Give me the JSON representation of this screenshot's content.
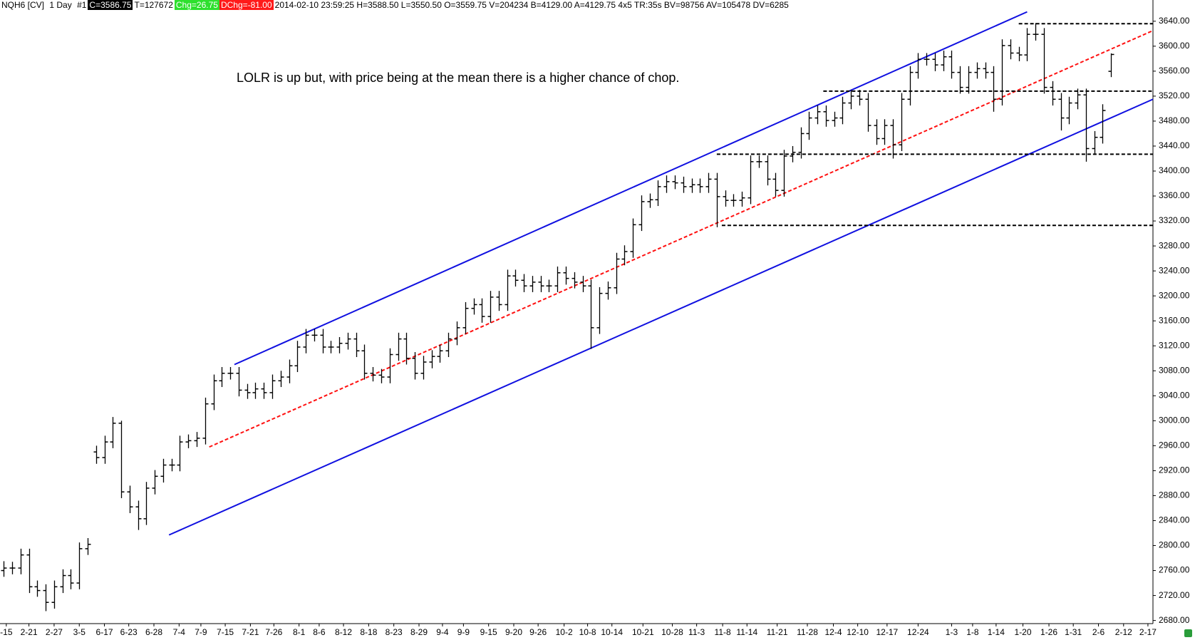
{
  "header": {
    "symbol": "NQH6 [CV]",
    "interval": "1 Day",
    "id": "#1",
    "close": "C=3586.75",
    "ticks": "T=127672",
    "change": "Chg=26.75",
    "dchange": "DChg=-81.00",
    "info": "2014-02-10 23:59:25 H=3588.50 L=3550.50 O=3559.75 V=204234 B=4129.00 A=4129.75 4x5 TR:35s BV=98756 AV=105478 DV=6285"
  },
  "chart_data": {
    "type": "ohlc",
    "color": "#000000",
    "annotation": "LOLR is up but, with price being at the mean there is a higher chance of chop.",
    "xlim": [
      -0.45,
      137
    ],
    "ylim": [
      2675,
      3674
    ],
    "ohlc": [
      [
        2760,
        2775,
        2750,
        2764
      ],
      [
        2764,
        2774,
        2754,
        2764
      ],
      [
        2764,
        2795,
        2754,
        2785
      ],
      [
        2785,
        2795,
        2724,
        2734
      ],
      [
        2734,
        2744,
        2718,
        2728
      ],
      [
        2728,
        2738,
        2695,
        2709
      ],
      [
        2709,
        2744,
        2699,
        2734
      ],
      [
        2734,
        2762,
        2724,
        2752
      ],
      [
        2752,
        2762,
        2730,
        2740
      ],
      [
        2740,
        2805,
        2730,
        2795
      ],
      [
        2795,
        2812,
        2785,
        2802
      ],
      [
        2950,
        2960,
        2931,
        2941
      ],
      [
        2941,
        2976,
        2931,
        2966
      ],
      [
        2966,
        3006,
        2956,
        2996
      ],
      [
        2996,
        3000,
        2876,
        2886
      ],
      [
        2886,
        2896,
        2852,
        2862
      ],
      [
        2862,
        2872,
        2825,
        2843
      ],
      [
        2843,
        2902,
        2833,
        2892
      ],
      [
        2892,
        2921,
        2882,
        2911
      ],
      [
        2911,
        2939,
        2901,
        2929
      ],
      [
        2929,
        2939,
        2919,
        2929
      ],
      [
        2929,
        2976,
        2919,
        2966
      ],
      [
        2966,
        2978,
        2956,
        2968
      ],
      [
        2968,
        2982,
        2958,
        2972
      ],
      [
        2972,
        3037,
        2962,
        3027
      ],
      [
        3027,
        3074,
        3017,
        3064
      ],
      [
        3064,
        3086,
        3054,
        3076
      ],
      [
        3076,
        3086,
        3066,
        3076
      ],
      [
        3076,
        3086,
        3039,
        3049
      ],
      [
        3049,
        3059,
        3035,
        3045
      ],
      [
        3045,
        3061,
        3035,
        3051
      ],
      [
        3051,
        3061,
        3035,
        3045
      ],
      [
        3045,
        3074,
        3035,
        3064
      ],
      [
        3064,
        3080,
        3054,
        3070
      ],
      [
        3070,
        3098,
        3060,
        3088
      ],
      [
        3088,
        3128,
        3078,
        3118
      ],
      [
        3118,
        3147,
        3108,
        3137
      ],
      [
        3137,
        3147,
        3127,
        3137
      ],
      [
        3137,
        3147,
        3108,
        3118
      ],
      [
        3118,
        3128,
        3108,
        3118
      ],
      [
        3118,
        3134,
        3108,
        3124
      ],
      [
        3124,
        3141,
        3114,
        3131
      ],
      [
        3131,
        3141,
        3102,
        3112
      ],
      [
        3112,
        3122,
        3066,
        3076
      ],
      [
        3076,
        3086,
        3063,
        3073
      ],
      [
        3073,
        3083,
        3060,
        3070
      ],
      [
        3070,
        3116,
        3060,
        3106
      ],
      [
        3106,
        3141,
        3096,
        3131
      ],
      [
        3131,
        3141,
        3090,
        3100
      ],
      [
        3100,
        3110,
        3066,
        3076
      ],
      [
        3076,
        3104,
        3066,
        3094
      ],
      [
        3094,
        3113,
        3084,
        3103
      ],
      [
        3103,
        3122,
        3093,
        3112
      ],
      [
        3112,
        3141,
        3102,
        3131
      ],
      [
        3131,
        3159,
        3121,
        3149
      ],
      [
        3149,
        3190,
        3139,
        3180
      ],
      [
        3180,
        3196,
        3170,
        3186
      ],
      [
        3186,
        3196,
        3157,
        3167
      ],
      [
        3167,
        3208,
        3157,
        3198
      ],
      [
        3198,
        3208,
        3176,
        3186
      ],
      [
        3186,
        3242,
        3176,
        3232
      ],
      [
        3232,
        3242,
        3215,
        3225
      ],
      [
        3225,
        3235,
        3206,
        3216
      ],
      [
        3216,
        3232,
        3206,
        3222
      ],
      [
        3222,
        3232,
        3206,
        3216
      ],
      [
        3216,
        3226,
        3206,
        3216
      ],
      [
        3216,
        3247,
        3206,
        3237
      ],
      [
        3237,
        3247,
        3218,
        3228
      ],
      [
        3228,
        3238,
        3212,
        3222
      ],
      [
        3222,
        3232,
        3206,
        3216
      ],
      [
        3216,
        3226,
        3115,
        3149
      ],
      [
        3149,
        3214,
        3139,
        3204
      ],
      [
        3204,
        3223,
        3194,
        3213
      ],
      [
        3213,
        3269,
        3203,
        3259
      ],
      [
        3259,
        3281,
        3249,
        3271
      ],
      [
        3271,
        3324,
        3261,
        3314
      ],
      [
        3314,
        3361,
        3304,
        3351
      ],
      [
        3351,
        3364,
        3341,
        3354
      ],
      [
        3354,
        3385,
        3344,
        3375
      ],
      [
        3375,
        3393,
        3365,
        3383
      ],
      [
        3383,
        3393,
        3371,
        3381
      ],
      [
        3381,
        3391,
        3365,
        3375
      ],
      [
        3375,
        3388,
        3365,
        3378
      ],
      [
        3378,
        3388,
        3365,
        3375
      ],
      [
        3375,
        3397,
        3365,
        3387
      ],
      [
        3387,
        3397,
        3310,
        3359
      ],
      [
        3359,
        3369,
        3343,
        3353
      ],
      [
        3353,
        3363,
        3343,
        3353
      ],
      [
        3353,
        3367,
        3343,
        3357
      ],
      [
        3357,
        3425,
        3347,
        3415
      ],
      [
        3415,
        3425,
        3405,
        3415
      ],
      [
        3415,
        3425,
        3377,
        3387
      ],
      [
        3387,
        3397,
        3359,
        3369
      ],
      [
        3369,
        3434,
        3359,
        3424
      ],
      [
        3424,
        3440,
        3414,
        3430
      ],
      [
        3430,
        3470,
        3420,
        3460
      ],
      [
        3460,
        3495,
        3450,
        3485
      ],
      [
        3485,
        3505,
        3475,
        3495
      ],
      [
        3495,
        3505,
        3471,
        3481
      ],
      [
        3481,
        3495,
        3471,
        3485
      ],
      [
        3485,
        3519,
        3475,
        3509
      ],
      [
        3509,
        3530,
        3499,
        3520
      ],
      [
        3520,
        3530,
        3505,
        3515
      ],
      [
        3515,
        3525,
        3463,
        3473
      ],
      [
        3473,
        3483,
        3442,
        3452
      ],
      [
        3452,
        3483,
        3442,
        3473
      ],
      [
        3473,
        3483,
        3420,
        3442
      ],
      [
        3442,
        3525,
        3432,
        3515
      ],
      [
        3515,
        3568,
        3505,
        3558
      ],
      [
        3558,
        3589,
        3548,
        3579
      ],
      [
        3579,
        3589,
        3569,
        3579
      ],
      [
        3579,
        3589,
        3560,
        3570
      ],
      [
        3570,
        3593,
        3560,
        3583
      ],
      [
        3583,
        3593,
        3548,
        3558
      ],
      [
        3558,
        3568,
        3524,
        3534
      ],
      [
        3534,
        3568,
        3524,
        3558
      ],
      [
        3558,
        3574,
        3548,
        3564
      ],
      [
        3564,
        3574,
        3548,
        3558
      ],
      [
        3558,
        3568,
        3495,
        3515
      ],
      [
        3515,
        3611,
        3505,
        3601
      ],
      [
        3601,
        3611,
        3579,
        3589
      ],
      [
        3589,
        3599,
        3576,
        3586
      ],
      [
        3586,
        3629,
        3576,
        3619
      ],
      [
        3619,
        3637,
        3609,
        3619
      ],
      [
        3619,
        3629,
        3524,
        3534
      ],
      [
        3534,
        3544,
        3505,
        3515
      ],
      [
        3515,
        3525,
        3465,
        3485
      ],
      [
        3485,
        3519,
        3475,
        3509
      ],
      [
        3509,
        3532,
        3499,
        3522
      ],
      [
        3522,
        3532,
        3415,
        3436
      ],
      [
        3436,
        3464,
        3426,
        3454
      ],
      [
        3454,
        3507,
        3444,
        3497
      ],
      [
        3559.75,
        3588.5,
        3550.5,
        3586.75
      ]
    ],
    "trendlines": [
      {
        "color": "#1010e0",
        "dashed": false,
        "points": [
          [
            27.5,
            3090
          ],
          [
            122,
            3655
          ]
        ]
      },
      {
        "color": "#1010e0",
        "dashed": false,
        "points": [
          [
            19.7,
            2817
          ],
          [
            137,
            3515
          ]
        ]
      },
      {
        "color": "#ff1010",
        "dashed": true,
        "points": [
          [
            24.5,
            2958
          ],
          [
            137,
            3625
          ]
        ]
      },
      {
        "color": "#000000",
        "dashed": true,
        "points": [
          [
            121,
            3636
          ],
          [
            137,
            3636
          ]
        ]
      },
      {
        "color": "#000000",
        "dashed": true,
        "points": [
          [
            97.7,
            3528
          ],
          [
            137,
            3528
          ]
        ]
      },
      {
        "color": "#000000",
        "dashed": true,
        "points": [
          [
            85,
            3427
          ],
          [
            137,
            3427
          ]
        ]
      },
      {
        "color": "#000000",
        "dashed": true,
        "points": [
          [
            85.6,
            3313
          ],
          [
            137,
            3313
          ]
        ]
      }
    ],
    "xticks": [
      {
        "value": 0.3,
        "label": "-15"
      },
      {
        "value": 3,
        "label": "2-21"
      },
      {
        "value": 6,
        "label": "2-27"
      },
      {
        "value": 9,
        "label": "3-5"
      },
      {
        "value": 12,
        "label": "6-17"
      },
      {
        "value": 14.9,
        "label": "6-23"
      },
      {
        "value": 17.9,
        "label": "6-28"
      },
      {
        "value": 20.9,
        "label": "7-4"
      },
      {
        "value": 23.5,
        "label": "7-9"
      },
      {
        "value": 26.4,
        "label": "7-15"
      },
      {
        "value": 29.4,
        "label": "7-21"
      },
      {
        "value": 32.2,
        "label": "7-26"
      },
      {
        "value": 35.2,
        "label": "8-1"
      },
      {
        "value": 37.6,
        "label": "8-6"
      },
      {
        "value": 40.5,
        "label": "8-12"
      },
      {
        "value": 43.5,
        "label": "8-18"
      },
      {
        "value": 46.5,
        "label": "8-23"
      },
      {
        "value": 49.5,
        "label": "8-29"
      },
      {
        "value": 52.3,
        "label": "9-4"
      },
      {
        "value": 54.8,
        "label": "9-9"
      },
      {
        "value": 57.8,
        "label": "9-15"
      },
      {
        "value": 60.8,
        "label": "9-20"
      },
      {
        "value": 63.7,
        "label": "9-26"
      },
      {
        "value": 66.8,
        "label": "10-2"
      },
      {
        "value": 69.6,
        "label": "10-8"
      },
      {
        "value": 72.5,
        "label": "10-14"
      },
      {
        "value": 76.2,
        "label": "10-21"
      },
      {
        "value": 79.7,
        "label": "10-28"
      },
      {
        "value": 82.6,
        "label": "11-3"
      },
      {
        "value": 85.7,
        "label": "11-8"
      },
      {
        "value": 88.6,
        "label": "11-14"
      },
      {
        "value": 92.2,
        "label": "11-21"
      },
      {
        "value": 95.8,
        "label": "11-28"
      },
      {
        "value": 98.9,
        "label": "12-4"
      },
      {
        "value": 101.8,
        "label": "12-10"
      },
      {
        "value": 105.3,
        "label": "12-17"
      },
      {
        "value": 109,
        "label": "12-24"
      },
      {
        "value": 113,
        "label": "1-3"
      },
      {
        "value": 115.5,
        "label": "1-8"
      },
      {
        "value": 118.3,
        "label": "1-14"
      },
      {
        "value": 121.5,
        "label": "1-20"
      },
      {
        "value": 124.6,
        "label": "1-26"
      },
      {
        "value": 127.5,
        "label": "1-31"
      },
      {
        "value": 130.5,
        "label": "2-6"
      },
      {
        "value": 133.5,
        "label": "2-12"
      },
      {
        "value": 136.4,
        "label": "2-17"
      }
    ],
    "yticks": [
      {
        "value": 2680,
        "label": "2680.00"
      },
      {
        "value": 2720,
        "label": "2720.00"
      },
      {
        "value": 2760,
        "label": "2760.00"
      },
      {
        "value": 2800,
        "label": "2800.00"
      },
      {
        "value": 2840,
        "label": "2840.00"
      },
      {
        "value": 2880,
        "label": "2880.00"
      },
      {
        "value": 2920,
        "label": "2920.00"
      },
      {
        "value": 2960,
        "label": "2960.00"
      },
      {
        "value": 3000,
        "label": "3000.00"
      },
      {
        "value": 3040,
        "label": "3040.00"
      },
      {
        "value": 3080,
        "label": "3080.00"
      },
      {
        "value": 3120,
        "label": "3120.00"
      },
      {
        "value": 3160,
        "label": "3160.00"
      },
      {
        "value": 3200,
        "label": "3200.00"
      },
      {
        "value": 3240,
        "label": "3240.00"
      },
      {
        "value": 3280,
        "label": "3280.00"
      },
      {
        "value": 3320,
        "label": "3320.00"
      },
      {
        "value": 3360,
        "label": "3360.00"
      },
      {
        "value": 3400,
        "label": "3400.00"
      },
      {
        "value": 3440,
        "label": "3440.00"
      },
      {
        "value": 3480,
        "label": "3480.00"
      },
      {
        "value": 3520,
        "label": "3520.00"
      },
      {
        "value": 3560,
        "label": "3560.00"
      },
      {
        "value": 3600,
        "label": "3600.00"
      },
      {
        "value": 3640,
        "label": "3640.00"
      }
    ]
  }
}
